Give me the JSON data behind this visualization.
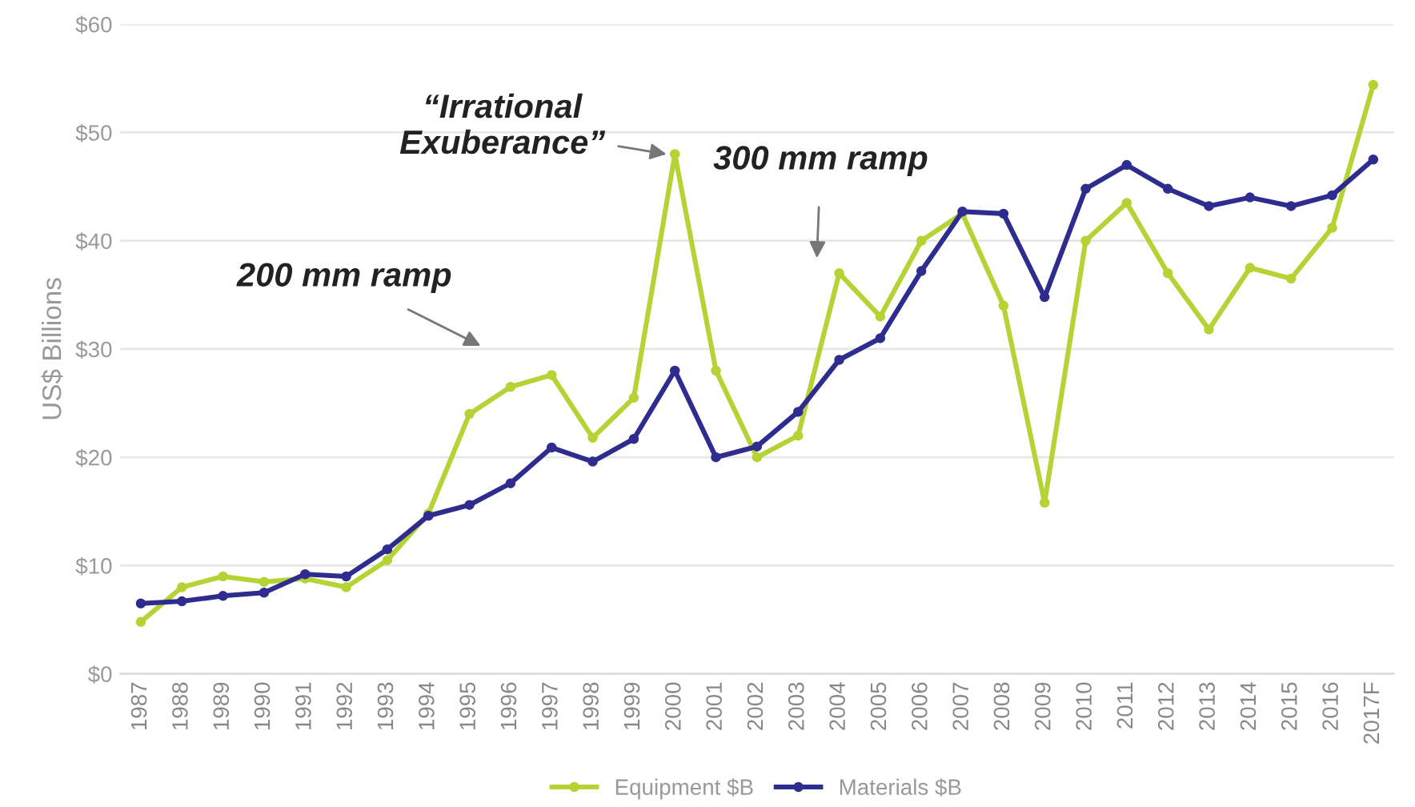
{
  "chart_data": {
    "type": "line",
    "ylabel": "US$ Billions",
    "categories": [
      "1987",
      "1988",
      "1989",
      "1990",
      "1991",
      "1992",
      "1993",
      "1994",
      "1995",
      "1996",
      "1997",
      "1998",
      "1999",
      "2000",
      "2001",
      "2002",
      "2003",
      "2004",
      "2005",
      "2006",
      "2007",
      "2008",
      "2009",
      "2010",
      "2011",
      "2012",
      "2013",
      "2014",
      "2015",
      "2016",
      "2017F"
    ],
    "series": [
      {
        "name": "Equipment $B",
        "color": "#b5d334",
        "values": [
          4.8,
          8,
          9,
          8.5,
          8.8,
          8,
          10.5,
          14.8,
          24,
          26.5,
          27.6,
          21.8,
          25.5,
          48,
          28,
          20,
          22,
          37,
          33,
          40,
          42.5,
          34,
          15.8,
          40,
          43.5,
          37,
          31.8,
          37.5,
          36.5,
          41.2,
          54.4
        ]
      },
      {
        "name": "Materials $B",
        "color": "#2e2d8f",
        "values": [
          6.5,
          6.7,
          7.2,
          7.5,
          9.2,
          9,
          11.5,
          14.6,
          15.6,
          17.6,
          20.9,
          19.6,
          21.7,
          28,
          20,
          21,
          24.2,
          29,
          31,
          37.2,
          42.7,
          42.5,
          34.8,
          44.8,
          47,
          44.8,
          43.2,
          44,
          43.2,
          44.2,
          47.5
        ]
      }
    ],
    "ylim": [
      0,
      60
    ],
    "yticks": [
      {
        "value": 0,
        "label": "$0"
      },
      {
        "value": 10,
        "label": "$10"
      },
      {
        "value": 20,
        "label": "$20"
      },
      {
        "value": 30,
        "label": "$30"
      },
      {
        "value": 40,
        "label": "$40"
      },
      {
        "value": 50,
        "label": "$50"
      },
      {
        "value": 60,
        "label": "$60"
      }
    ],
    "grid": "y",
    "legend": "bottom",
    "marker": "circle",
    "line_style": "solid",
    "annotations": [
      {
        "text": "“Irrational\nExuberance”",
        "x": "2000",
        "y": 48
      },
      "200 mm ramp",
      "300 mm ramp"
    ]
  }
}
